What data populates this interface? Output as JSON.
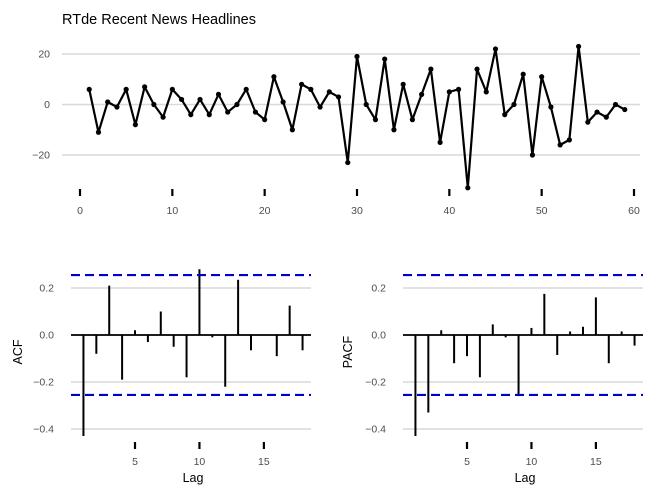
{
  "chart_data": [
    {
      "id": "ts",
      "type": "line",
      "title": "RTde Recent News Headlines",
      "xlabel": "",
      "ylabel": "",
      "xlim": [
        0,
        60
      ],
      "ylim": [
        -35,
        25
      ],
      "x_ticks": [
        "0",
        "10",
        "20",
        "30",
        "40",
        "50",
        "60"
      ],
      "y_ticks": [
        "20",
        "0",
        "−20"
      ],
      "grid": "horizontal",
      "color": "#000000",
      "x": [
        1,
        2,
        3,
        4,
        5,
        6,
        7,
        8,
        9,
        10,
        11,
        12,
        13,
        14,
        15,
        16,
        17,
        18,
        19,
        20,
        21,
        22,
        23,
        24,
        25,
        26,
        27,
        28,
        29,
        30,
        31,
        32,
        33,
        34,
        35,
        36,
        37,
        38,
        39,
        40,
        41,
        42,
        43,
        44,
        45,
        46,
        47,
        48,
        49,
        50,
        51,
        52,
        53,
        54,
        55,
        56,
        57,
        58,
        59
      ],
      "values": [
        6,
        -11,
        1,
        -1,
        6,
        -8,
        7,
        0,
        -5,
        6,
        2,
        -4,
        2,
        -4,
        4,
        -3,
        0,
        6,
        -3,
        -6,
        11,
        1,
        -10,
        8,
        6,
        -1,
        5,
        3,
        -23,
        19,
        0,
        -6,
        18,
        -10,
        8,
        -6,
        4,
        14,
        -15,
        5,
        6,
        -33,
        14,
        5,
        22,
        -4,
        0,
        12,
        -20,
        11,
        -1,
        -16,
        -14,
        23,
        -7,
        -3,
        -5,
        0,
        -2
      ]
    },
    {
      "id": "acf",
      "type": "bar",
      "xlabel": "Lag",
      "ylabel": "ACF",
      "xlim": [
        0.5,
        18.5
      ],
      "ylim": [
        -0.45,
        0.3
      ],
      "x_ticks": [
        "5",
        "10",
        "15"
      ],
      "y_ticks": [
        "0.2",
        "0.0",
        "−0.2",
        "−0.4"
      ],
      "confidence_bound": 0.255,
      "grid": "horizontal",
      "lags": [
        1,
        2,
        3,
        4,
        5,
        6,
        7,
        8,
        9,
        10,
        11,
        12,
        13,
        14,
        15,
        16,
        17,
        18
      ],
      "values": [
        -0.43,
        -0.08,
        0.21,
        -0.19,
        0.02,
        -0.03,
        0.1,
        -0.05,
        -0.18,
        0.28,
        -0.01,
        -0.22,
        0.235,
        -0.065,
        0,
        -0.09,
        0.125,
        -0.065
      ]
    },
    {
      "id": "pacf",
      "type": "bar",
      "xlabel": "Lag",
      "ylabel": "PACF",
      "xlim": [
        0.5,
        18.5
      ],
      "ylim": [
        -0.45,
        0.3
      ],
      "x_ticks": [
        "5",
        "10",
        "15"
      ],
      "y_ticks": [
        "0.2",
        "0.0",
        "−0.2",
        "−0.4"
      ],
      "confidence_bound": 0.255,
      "grid": "horizontal",
      "lags": [
        1,
        2,
        3,
        4,
        5,
        6,
        7,
        8,
        9,
        10,
        11,
        12,
        13,
        14,
        15,
        16,
        17,
        18
      ],
      "values": [
        -0.43,
        -0.33,
        0.02,
        -0.12,
        -0.09,
        -0.18,
        0.045,
        -0.01,
        -0.26,
        0.03,
        0.175,
        -0.085,
        0.015,
        0.035,
        0.16,
        -0.12,
        0.015,
        -0.045
      ]
    }
  ],
  "colors": {
    "bound": "#0000cc",
    "grid": "#d9d9d9",
    "ink": "#000000"
  }
}
